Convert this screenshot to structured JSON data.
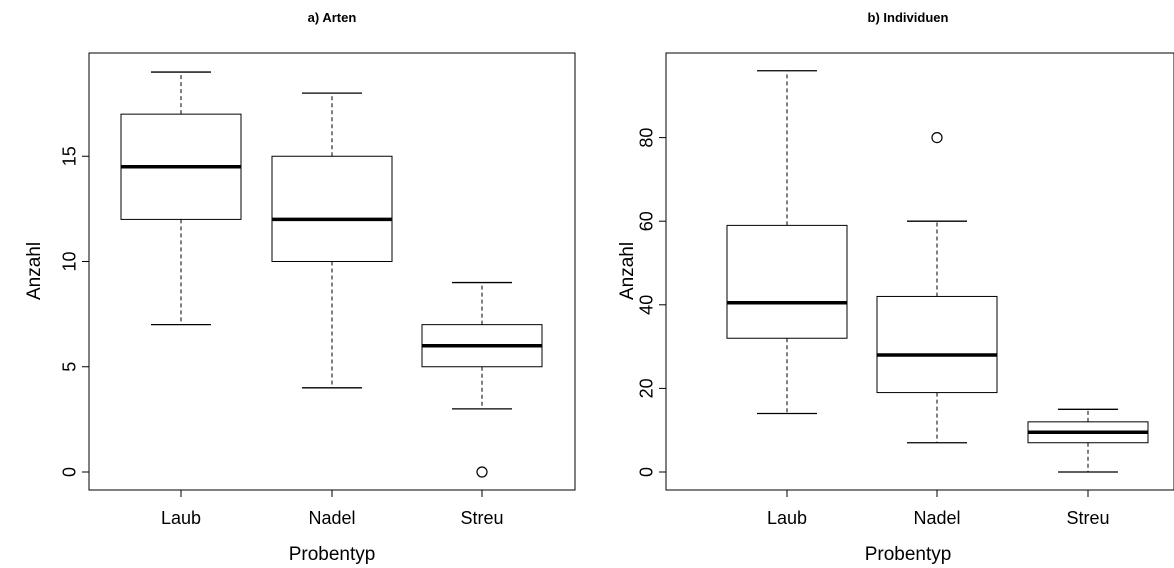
{
  "chart_data": [
    {
      "type": "boxplot",
      "title": "a) Arten",
      "xlabel": "Probentyp",
      "ylabel": "Anzahl",
      "categories": [
        "Laub",
        "Nadel",
        "Streu"
      ],
      "yticks": [
        0,
        5,
        10,
        15
      ],
      "ylim": [
        0,
        19
      ],
      "boxes": [
        {
          "category": "Laub",
          "whisker_low": 7,
          "q1": 12,
          "median": 14.5,
          "q3": 17,
          "whisker_high": 19,
          "outliers": []
        },
        {
          "category": "Nadel",
          "whisker_low": 4,
          "q1": 10,
          "median": 12,
          "q3": 15,
          "whisker_high": 18,
          "outliers": []
        },
        {
          "category": "Streu",
          "whisker_low": 3,
          "q1": 5,
          "median": 6,
          "q3": 7,
          "whisker_high": 9,
          "outliers": [
            0
          ]
        }
      ]
    },
    {
      "type": "boxplot",
      "title": "b) Individuen",
      "xlabel": "Probentyp",
      "ylabel": "Anzahl",
      "categories": [
        "Laub",
        "Nadel",
        "Streu"
      ],
      "yticks": [
        0,
        20,
        40,
        60,
        80
      ],
      "ylim": [
        0,
        96
      ],
      "boxes": [
        {
          "category": "Laub",
          "whisker_low": 14,
          "q1": 32,
          "median": 40.5,
          "q3": 59,
          "whisker_high": 96,
          "outliers": []
        },
        {
          "category": "Nadel",
          "whisker_low": 7,
          "q1": 19,
          "median": 28,
          "q3": 42,
          "whisker_high": 60,
          "outliers": [
            80
          ]
        },
        {
          "category": "Streu",
          "whisker_low": 0,
          "q1": 7,
          "median": 9.5,
          "q3": 12,
          "whisker_high": 15,
          "outliers": []
        }
      ]
    }
  ]
}
